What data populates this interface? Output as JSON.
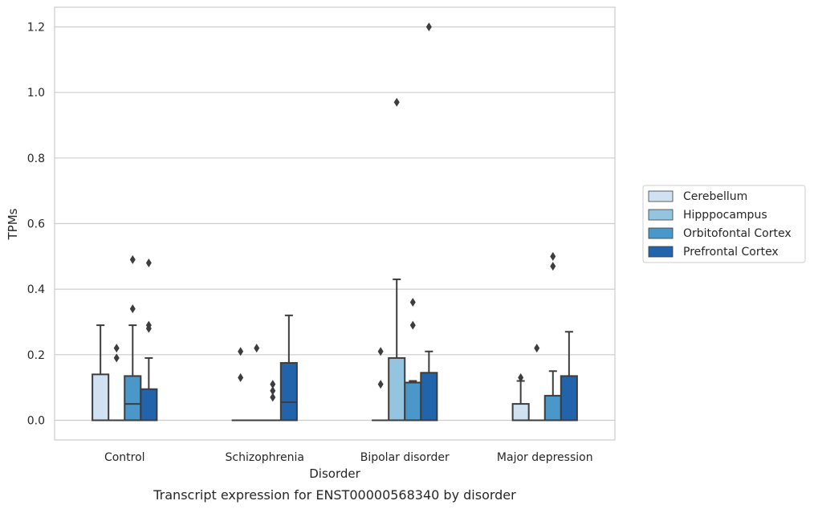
{
  "chart_data": {
    "type": "boxplot",
    "caption": "Transcript expression for ENST00000568340 by disorder",
    "xlabel": "Disorder",
    "ylabel": "TPMs",
    "ylim": [
      -0.06,
      1.26
    ],
    "yticks": [
      "0.0",
      "0.2",
      "0.4",
      "0.6",
      "0.8",
      "1.0",
      "1.2"
    ],
    "grid": "horizontal",
    "legend_position": "right",
    "categories": [
      "Control",
      "Schizophrenia",
      "Bipolar disorder",
      "Major depression"
    ],
    "series": [
      {
        "name": "Cerebellum",
        "color": "#d0e1f2",
        "boxes": [
          {
            "q1": 0,
            "median": 0,
            "q3": 0.14,
            "whisker_low": 0,
            "whisker_high": 0.29,
            "outliers": []
          },
          {
            "q1": 0,
            "median": 0,
            "q3": 0,
            "whisker_low": 0,
            "whisker_high": 0,
            "outliers": [
              0.13,
              0.21
            ]
          },
          {
            "q1": 0,
            "median": 0,
            "q3": 0,
            "whisker_low": 0,
            "whisker_high": 0,
            "outliers": [
              0.11,
              0.21
            ]
          },
          {
            "q1": 0,
            "median": 0,
            "q3": 0.05,
            "whisker_low": 0,
            "whisker_high": 0.12,
            "outliers": [
              0.13
            ]
          }
        ]
      },
      {
        "name": "Hipppocampus",
        "color": "#94c4df",
        "boxes": [
          {
            "q1": 0,
            "median": 0,
            "q3": 0,
            "whisker_low": 0,
            "whisker_high": 0,
            "outliers": [
              0.19,
              0.22
            ]
          },
          {
            "q1": 0,
            "median": 0,
            "q3": 0,
            "whisker_low": 0,
            "whisker_high": 0,
            "outliers": [
              0.22
            ]
          },
          {
            "q1": 0,
            "median": 0,
            "q3": 0.19,
            "whisker_low": 0,
            "whisker_high": 0.43,
            "outliers": [
              0.97
            ]
          },
          {
            "q1": 0,
            "median": 0,
            "q3": 0,
            "whisker_low": 0,
            "whisker_high": 0,
            "outliers": [
              0.22
            ]
          }
        ]
      },
      {
        "name": "Orbitofontal Cortex",
        "color": "#4a98c9",
        "boxes": [
          {
            "q1": 0,
            "median": 0.05,
            "q3": 0.135,
            "whisker_low": 0,
            "whisker_high": 0.29,
            "outliers": [
              0.34,
              0.49
            ]
          },
          {
            "q1": 0,
            "median": 0,
            "q3": 0,
            "whisker_low": 0,
            "whisker_high": 0,
            "outliers": [
              0.07,
              0.09,
              0.11
            ]
          },
          {
            "q1": 0,
            "median": 0.115,
            "q3": 0.115,
            "whisker_low": 0,
            "whisker_high": 0.12,
            "outliers": [
              0.29,
              0.36
            ]
          },
          {
            "q1": 0,
            "median": 0,
            "q3": 0.075,
            "whisker_low": 0,
            "whisker_high": 0.15,
            "outliers": [
              0.47,
              0.5
            ]
          }
        ]
      },
      {
        "name": "Prefrontal Cortex",
        "color": "#2164ab",
        "boxes": [
          {
            "q1": 0,
            "median": 0,
            "q3": 0.095,
            "whisker_low": 0,
            "whisker_high": 0.19,
            "outliers": [
              0.28,
              0.29,
              0.48
            ]
          },
          {
            "q1": 0,
            "median": 0.055,
            "q3": 0.175,
            "whisker_low": 0,
            "whisker_high": 0.32,
            "outliers": []
          },
          {
            "q1": 0,
            "median": 0,
            "q3": 0.145,
            "whisker_low": 0,
            "whisker_high": 0.21,
            "outliers": [
              1.2
            ]
          },
          {
            "q1": 0,
            "median": 0,
            "q3": 0.135,
            "whisker_low": 0,
            "whisker_high": 0.27,
            "outliers": []
          }
        ]
      }
    ]
  }
}
